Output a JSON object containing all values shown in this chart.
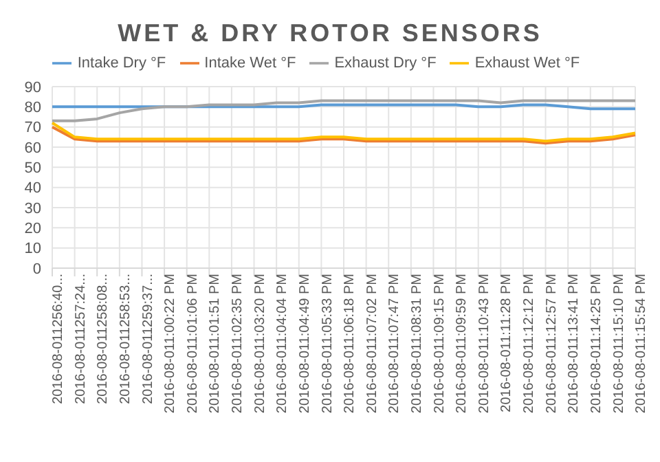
{
  "chart_data": {
    "type": "line",
    "title": "WET & DRY ROTOR SENSORS",
    "categories": [
      "2016-08-011256:40...",
      "2016-08-011257:24...",
      "2016-08-011258:08...",
      "2016-08-011258:53...",
      "2016-08-011259:37...",
      "2016-08-011:00:22 PM",
      "2016-08-011:01:06 PM",
      "2016-08-011:01:51 PM",
      "2016-08-011:02:35 PM",
      "2016-08-011:03:20 PM",
      "2016-08-011:04:04 PM",
      "2016-08-011:04:49 PM",
      "2016-08-011:05:33 PM",
      "2016-08-011:06:18 PM",
      "2016-08-011:07:02 PM",
      "2016-08-011:07:47 PM",
      "2016-08-011:08:31 PM",
      "2016-08-011:09:15 PM",
      "2016-08-011:09:59 PM",
      "2016-08-011:10:43 PM",
      "2016-08-011:11:28 PM",
      "2016-08-011:12:12 PM",
      "2016-08-011:12:57 PM",
      "2016-08-011:13:41 PM",
      "2016-08-011:14:25 PM",
      "2016-08-011:15:10 PM",
      "2016-08-011:15:54 PM"
    ],
    "series": [
      {
        "name": "Intake Dry °F",
        "color": "#5b9bd5",
        "values": [
          80,
          80,
          80,
          80,
          80,
          80,
          80,
          80,
          80,
          80,
          80,
          80,
          81,
          81,
          81,
          81,
          81,
          81,
          81,
          80,
          80,
          81,
          81,
          80,
          79,
          79,
          79
        ]
      },
      {
        "name": "Intake Wet °F",
        "color": "#ed7d31",
        "values": [
          70,
          64,
          63,
          63,
          63,
          63,
          63,
          63,
          63,
          63,
          63,
          63,
          64,
          64,
          63,
          63,
          63,
          63,
          63,
          63,
          63,
          63,
          62,
          63,
          63,
          64,
          66
        ]
      },
      {
        "name": "Exhaust Dry °F",
        "color": "#a5a5a5",
        "values": [
          73,
          73,
          74,
          77,
          79,
          80,
          80,
          81,
          81,
          81,
          82,
          82,
          83,
          83,
          83,
          83,
          83,
          83,
          83,
          83,
          82,
          83,
          83,
          83,
          83,
          83,
          83
        ]
      },
      {
        "name": "Exhaust Wet °F",
        "color": "#ffc000",
        "values": [
          72,
          65,
          64,
          64,
          64,
          64,
          64,
          64,
          64,
          64,
          64,
          64,
          65,
          65,
          64,
          64,
          64,
          64,
          64,
          64,
          64,
          64,
          63,
          64,
          64,
          65,
          67
        ]
      }
    ],
    "ylim": [
      0,
      90
    ],
    "yticks": [
      0,
      10,
      20,
      30,
      40,
      50,
      60,
      70,
      80,
      90
    ],
    "grid": true,
    "legend": "top",
    "marker": "none",
    "line_style": "solid"
  }
}
